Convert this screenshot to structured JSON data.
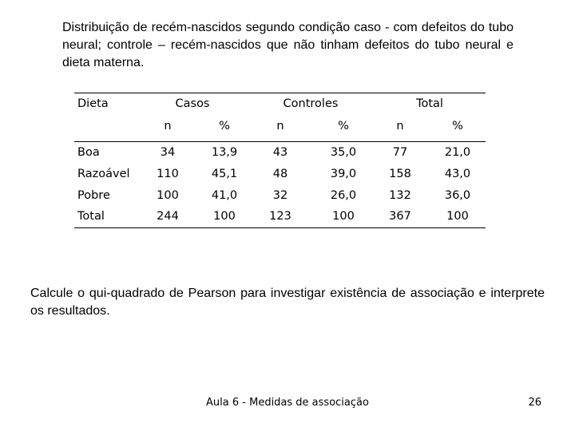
{
  "title": "Distribuição de recém-nascidos segundo condição caso - com defeitos do tubo neural; controle – recém-nascidos que não tinham defeitos do tubo neural e dieta materna.",
  "table": {
    "group_header": [
      "Dieta",
      "Casos",
      "Controles",
      "Total"
    ],
    "sub_header": [
      "n",
      "%",
      "n",
      "%",
      "n",
      "%"
    ],
    "rows": [
      [
        "Boa",
        "34",
        "13,9",
        "43",
        "35,0",
        "77",
        "21,0"
      ],
      [
        "Razoável",
        "110",
        "45,1",
        "48",
        "39,0",
        "158",
        "43,0"
      ],
      [
        "Pobre",
        "100",
        "41,0",
        "32",
        "26,0",
        "132",
        "36,0"
      ],
      [
        "Total",
        "244",
        "100",
        "123",
        "100",
        "367",
        "100"
      ]
    ]
  },
  "question": "Calcule o qui-quadrado de Pearson para investigar existência de associação e interprete os resultados.",
  "footer": {
    "text": "Aula 6 - Medidas de associação",
    "page": "26"
  }
}
